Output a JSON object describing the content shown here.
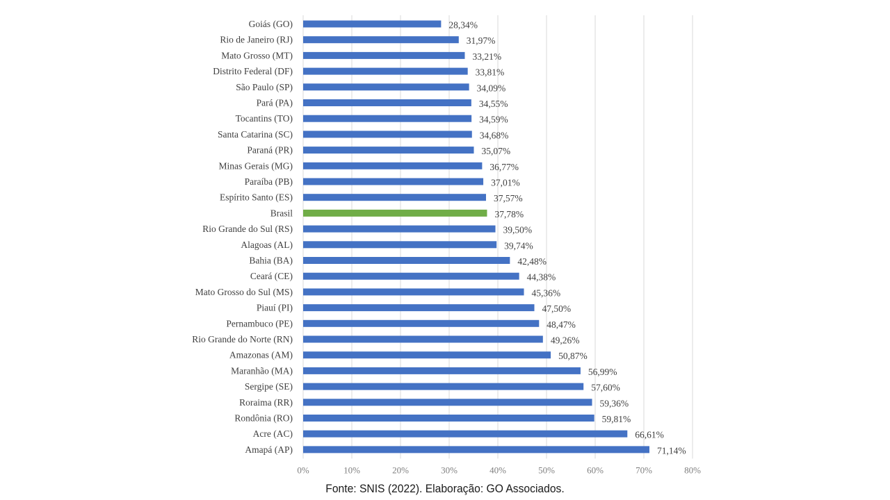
{
  "chart_data": {
    "type": "bar",
    "orientation": "horizontal",
    "title": "",
    "xlabel": "",
    "ylabel": "",
    "xlim": [
      0,
      80
    ],
    "x_ticks": [
      "0%",
      "10%",
      "20%",
      "30%",
      "40%",
      "50%",
      "60%",
      "70%",
      "80%"
    ],
    "x_tick_values": [
      0,
      10,
      20,
      30,
      40,
      50,
      60,
      70,
      80
    ],
    "grid": true,
    "colors": {
      "default": "#4472c4",
      "highlight": "#70ad47"
    },
    "categories": [
      "Goiás (GO)",
      "Rio de Janeiro (RJ)",
      "Mato Grosso (MT)",
      "Distrito Federal (DF)",
      "São Paulo (SP)",
      "Pará (PA)",
      "Tocantins (TO)",
      "Santa Catarina (SC)",
      "Paraná (PR)",
      "Minas Gerais (MG)",
      "Paraíba (PB)",
      "Espírito Santo (ES)",
      "Brasil",
      "Rio Grande do Sul (RS)",
      "Alagoas (AL)",
      "Bahia (BA)",
      "Ceará (CE)",
      "Mato Grosso do Sul (MS)",
      "Piauí (PI)",
      "Pernambuco (PE)",
      "Rio Grande do Norte (RN)",
      "Amazonas (AM)",
      "Maranhão (MA)",
      "Sergipe (SE)",
      "Roraima (RR)",
      "Rondônia (RO)",
      "Acre (AC)",
      "Amapá (AP)"
    ],
    "values": [
      28.34,
      31.97,
      33.21,
      33.81,
      34.09,
      34.55,
      34.59,
      34.68,
      35.07,
      36.77,
      37.01,
      37.57,
      37.78,
      39.5,
      39.74,
      42.48,
      44.38,
      45.36,
      47.5,
      48.47,
      49.26,
      50.87,
      56.99,
      57.6,
      59.36,
      59.81,
      66.61,
      71.14
    ],
    "value_labels": [
      "28,34%",
      "31,97%",
      "33,21%",
      "33,81%",
      "34,09%",
      "34,55%",
      "34,59%",
      "34,68%",
      "35,07%",
      "36,77%",
      "37,01%",
      "37,57%",
      "37,78%",
      "39,50%",
      "39,74%",
      "42,48%",
      "44,38%",
      "45,36%",
      "47,50%",
      "48,47%",
      "49,26%",
      "50,87%",
      "56,99%",
      "57,60%",
      "59,36%",
      "59,81%",
      "66,61%",
      "71,14%"
    ],
    "highlight_category": "Brasil",
    "source": "Fonte: SNIS (2022). Elaboração: GO Associados."
  }
}
